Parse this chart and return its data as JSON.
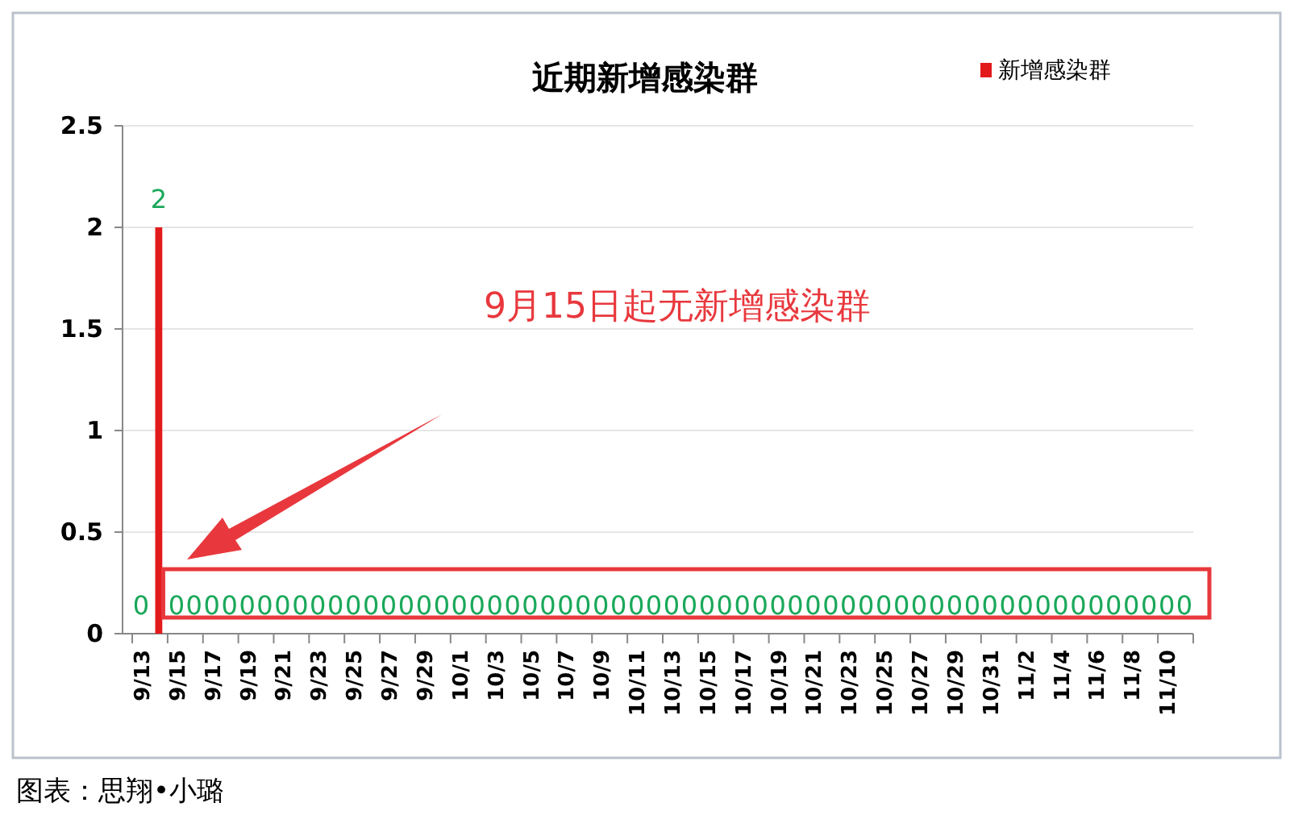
{
  "chart_data": {
    "type": "bar",
    "title": "近期新增感染群",
    "categories": [
      "9/13",
      null,
      "9/15",
      null,
      "9/17",
      null,
      "9/19",
      null,
      "9/21",
      null,
      "9/23",
      null,
      "9/25",
      null,
      "9/27",
      null,
      "9/29",
      null,
      "10/1",
      null,
      "10/3",
      null,
      "10/5",
      null,
      "10/7",
      null,
      "10/9",
      null,
      "10/11",
      null,
      "10/13",
      null,
      "10/15",
      null,
      "10/17",
      null,
      "10/19",
      null,
      "10/21",
      null,
      "10/23",
      null,
      "10/25",
      null,
      "10/27",
      null,
      "10/29",
      null,
      "10/31",
      null,
      "11/2",
      null,
      "11/4",
      null,
      "11/6",
      null,
      "11/8",
      null,
      "11/10",
      null
    ],
    "series": [
      {
        "name": "新增感染群",
        "color": "#e31a1c",
        "values": [
          0,
          2,
          0,
          0,
          0,
          0,
          0,
          0,
          0,
          0,
          0,
          0,
          0,
          0,
          0,
          0,
          0,
          0,
          0,
          0,
          0,
          0,
          0,
          0,
          0,
          0,
          0,
          0,
          0,
          0,
          0,
          0,
          0,
          0,
          0,
          0,
          0,
          0,
          0,
          0,
          0,
          0,
          0,
          0,
          0,
          0,
          0,
          0,
          0,
          0,
          0,
          0,
          0,
          0,
          0,
          0,
          0,
          0,
          0,
          0
        ]
      }
    ],
    "ylim": [
      0,
      2.5
    ],
    "yticks": [
      0,
      0.5,
      1,
      1.5,
      2,
      2.5
    ],
    "grid": "y",
    "legend": "top right",
    "data_labels": true,
    "annotations": [
      "9月15日起无新增感染群",
      "图表：思翔•小璐"
    ]
  }
}
